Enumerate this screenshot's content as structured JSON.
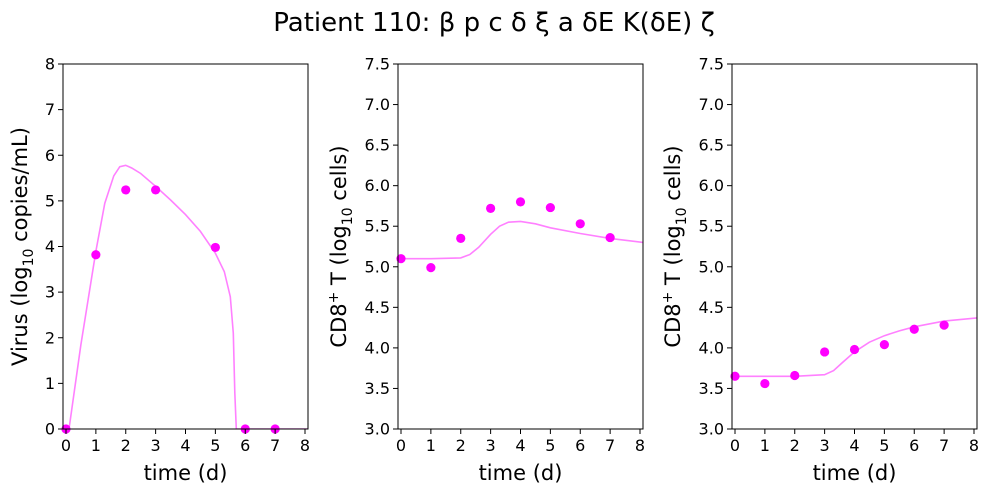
{
  "suptitle": "Patient 110: β p c δ ξ a δE K(δE) ζ",
  "colors": {
    "model_line": "#ff80ff",
    "data_points": "#ff00ff"
  },
  "chart_data": [
    {
      "type": "scatter",
      "xlabel": "time (d)",
      "ylabel": {
        "pre": "Virus (log",
        "sub": "10",
        "post": " copies/mL)"
      },
      "xlim": [
        -0.1,
        8.1
      ],
      "ylim": [
        0,
        8
      ],
      "xticks": [
        "0",
        "1",
        "2",
        "3",
        "4",
        "5",
        "6",
        "7",
        "8"
      ],
      "yticks": [
        "0",
        "1",
        "2",
        "3",
        "4",
        "5",
        "6",
        "7",
        "8"
      ],
      "points": {
        "x": [
          0,
          1,
          2,
          3,
          5,
          6,
          7
        ],
        "y": [
          0,
          3.82,
          5.24,
          5.24,
          3.98,
          0,
          0
        ]
      },
      "model": {
        "x": [
          0.1,
          0.5,
          1.0,
          1.3,
          1.6,
          1.8,
          2.0,
          2.2,
          2.5,
          3.0,
          3.5,
          4.0,
          4.5,
          5.0,
          5.3,
          5.5,
          5.6,
          5.65,
          5.7,
          8.1
        ],
        "y": [
          0,
          1.85,
          3.9,
          4.95,
          5.55,
          5.75,
          5.78,
          5.72,
          5.6,
          5.32,
          5.02,
          4.7,
          4.33,
          3.85,
          3.45,
          2.9,
          2.1,
          0.8,
          0,
          0
        ]
      }
    },
    {
      "type": "scatter",
      "xlabel": "time (d)",
      "ylabel": {
        "pre": "CD8",
        "sup": "+",
        "mid": " T (log",
        "sub": "10",
        "post": " cells)"
      },
      "xlim": [
        -0.1,
        8.1
      ],
      "ylim": [
        3.0,
        7.5
      ],
      "xticks": [
        "0",
        "1",
        "2",
        "3",
        "4",
        "5",
        "6",
        "7",
        "8"
      ],
      "yticks": [
        "3.0",
        "3.5",
        "4.0",
        "4.5",
        "5.0",
        "5.5",
        "6.0",
        "6.5",
        "7.0",
        "7.5"
      ],
      "points": {
        "x": [
          0,
          1,
          2,
          3,
          4,
          5,
          6,
          7
        ],
        "y": [
          5.1,
          4.99,
          5.35,
          5.72,
          5.8,
          5.73,
          5.53,
          5.36
        ]
      },
      "model": {
        "x": [
          0,
          1,
          2,
          2.3,
          2.6,
          3.0,
          3.3,
          3.6,
          4.0,
          4.5,
          5.0,
          6.0,
          7.0,
          8.1
        ],
        "y": [
          5.1,
          5.1,
          5.11,
          5.15,
          5.24,
          5.4,
          5.5,
          5.55,
          5.56,
          5.53,
          5.48,
          5.41,
          5.35,
          5.3
        ]
      }
    },
    {
      "type": "scatter",
      "xlabel": "time (d)",
      "ylabel": {
        "pre": "CD8",
        "sup": "+",
        "mid": " T (log",
        "sub": "10",
        "post": " cells)"
      },
      "xlim": [
        -0.1,
        8.1
      ],
      "ylim": [
        3.0,
        7.5
      ],
      "xticks": [
        "0",
        "1",
        "2",
        "3",
        "4",
        "5",
        "6",
        "7",
        "8"
      ],
      "yticks": [
        "3.0",
        "3.5",
        "4.0",
        "4.5",
        "5.0",
        "5.5",
        "6.0",
        "6.5",
        "7.0",
        "7.5"
      ],
      "points": {
        "x": [
          0,
          1,
          2,
          3,
          4,
          5,
          6,
          7
        ],
        "y": [
          3.65,
          3.56,
          3.66,
          3.95,
          3.98,
          4.04,
          4.23,
          4.28
        ]
      },
      "model": {
        "x": [
          0,
          1,
          2,
          3.0,
          3.3,
          3.6,
          4.0,
          4.5,
          5.0,
          5.5,
          6.0,
          7.0,
          8.1
        ],
        "y": [
          3.65,
          3.65,
          3.65,
          3.67,
          3.72,
          3.82,
          3.95,
          4.07,
          4.15,
          4.21,
          4.26,
          4.33,
          4.37
        ]
      }
    }
  ]
}
